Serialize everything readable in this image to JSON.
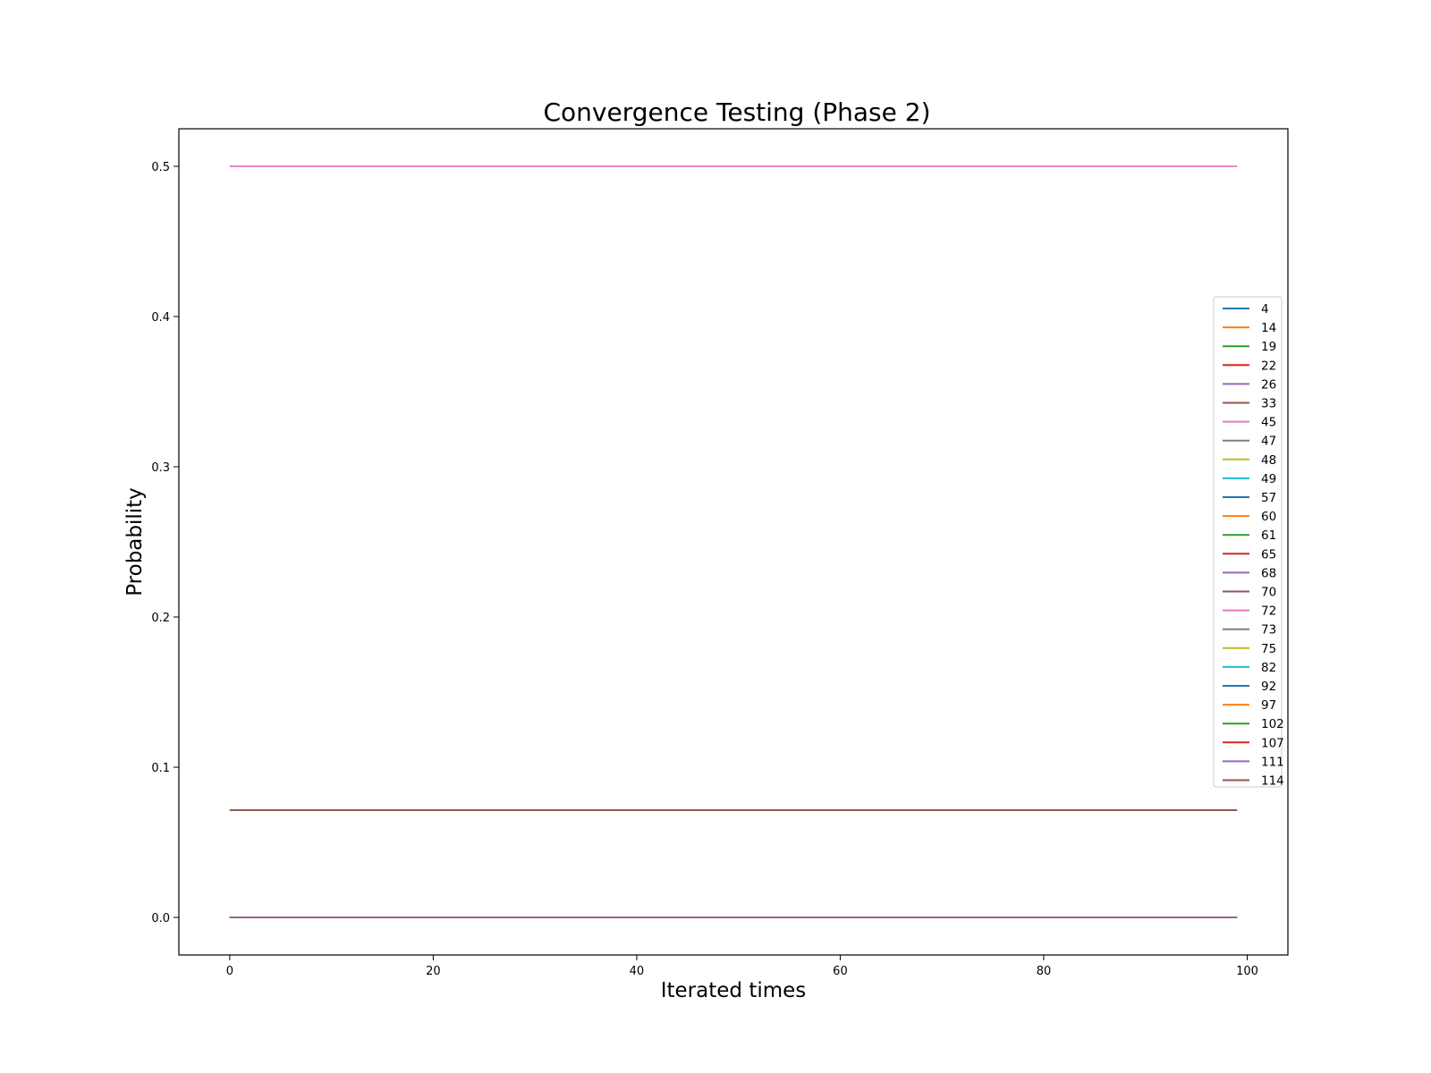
{
  "chart_data": {
    "type": "line",
    "title": "Convergence Testing (Phase 2)",
    "xlabel": "Iterated times",
    "ylabel": "Probability",
    "xlim": [
      -5,
      104
    ],
    "ylim": [
      -0.025,
      0.525
    ],
    "xticks": [
      0,
      20,
      40,
      60,
      80,
      100
    ],
    "yticks": [
      0.0,
      0.1,
      0.2,
      0.3,
      0.4,
      0.5
    ],
    "xtick_labels": [
      "0",
      "20",
      "40",
      "60",
      "80",
      "100"
    ],
    "ytick_labels": [
      "0.0",
      "0.1",
      "0.2",
      "0.3",
      "0.4",
      "0.5"
    ],
    "x_range": [
      0,
      99
    ],
    "grid": false,
    "legend_position": "right",
    "series": [
      {
        "name": "4",
        "color": "#1f77b4",
        "value": 0.0
      },
      {
        "name": "14",
        "color": "#ff7f0e",
        "value": 0.0
      },
      {
        "name": "19",
        "color": "#2ca02c",
        "value": 0.0
      },
      {
        "name": "22",
        "color": "#d62728",
        "value": 0.0
      },
      {
        "name": "26",
        "color": "#9467bd",
        "value": 0.0
      },
      {
        "name": "33",
        "color": "#8c564b",
        "value": 0.0714
      },
      {
        "name": "45",
        "color": "#e377c2",
        "value": 0.5
      },
      {
        "name": "47",
        "color": "#7f7f7f",
        "value": 0.0
      },
      {
        "name": "48",
        "color": "#bcbd22",
        "value": 0.0
      },
      {
        "name": "49",
        "color": "#17becf",
        "value": 0.0
      },
      {
        "name": "57",
        "color": "#1f77b4",
        "value": 0.0
      },
      {
        "name": "60",
        "color": "#ff7f0e",
        "value": 0.0
      },
      {
        "name": "61",
        "color": "#2ca02c",
        "value": 0.0
      },
      {
        "name": "65",
        "color": "#d62728",
        "value": 0.0
      },
      {
        "name": "68",
        "color": "#9467bd",
        "value": 0.0
      },
      {
        "name": "70",
        "color": "#8c564b",
        "value": 0.0714
      },
      {
        "name": "72",
        "color": "#e377c2",
        "value": 0.5
      },
      {
        "name": "73",
        "color": "#7f7f7f",
        "value": 0.0
      },
      {
        "name": "75",
        "color": "#bcbd22",
        "value": 0.0
      },
      {
        "name": "82",
        "color": "#17becf",
        "value": 0.0
      },
      {
        "name": "92",
        "color": "#1f77b4",
        "value": 0.0
      },
      {
        "name": "97",
        "color": "#ff7f0e",
        "value": 0.0
      },
      {
        "name": "102",
        "color": "#2ca02c",
        "value": 0.0
      },
      {
        "name": "107",
        "color": "#d62728",
        "value": 0.0
      },
      {
        "name": "111",
        "color": "#9467bd",
        "value": 0.0
      },
      {
        "name": "114",
        "color": "#8c564b",
        "value": 0.0714
      }
    ]
  }
}
